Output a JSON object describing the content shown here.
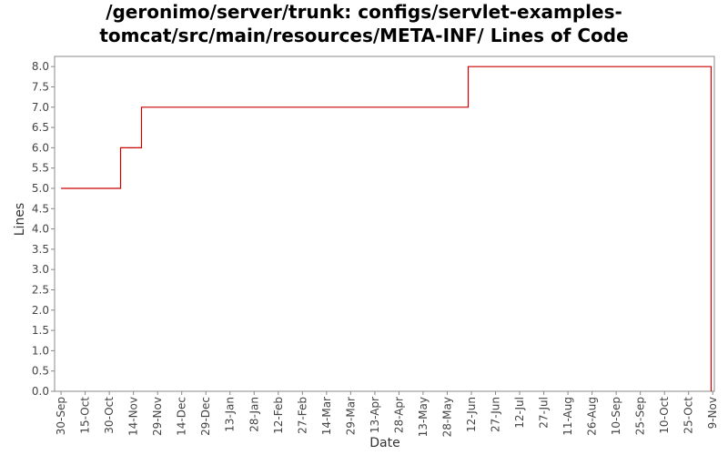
{
  "chart_data": {
    "type": "line",
    "title_lines": [
      "/geronimo/server/trunk: configs/servlet-examples-",
      "tomcat/src/main/resources/META-INF/ Lines of Code"
    ],
    "xlabel": "Date",
    "ylabel": "Lines",
    "x_tick_labels": [
      "30-Sep",
      "15-Oct",
      "30-Oct",
      "14-Nov",
      "29-Nov",
      "14-Dec",
      "29-Dec",
      "13-Jan",
      "28-Jan",
      "12-Feb",
      "27-Feb",
      "14-Mar",
      "29-Mar",
      "13-Apr",
      "28-Apr",
      "13-May",
      "28-May",
      "12-Jun",
      "27-Jun",
      "12-Jul",
      "27-Jul",
      "11-Aug",
      "26-Aug",
      "10-Sep",
      "25-Sep",
      "10-Oct",
      "25-Oct",
      "9-Nov"
    ],
    "y_ticks": [
      0.0,
      0.5,
      1.0,
      1.5,
      2.0,
      2.5,
      3.0,
      3.5,
      4.0,
      4.5,
      5.0,
      5.5,
      6.0,
      6.5,
      7.0,
      7.5,
      8.0
    ],
    "y_tick_labels": [
      "0.0",
      "0.5",
      "1.0",
      "1.5",
      "2.0",
      "2.5",
      "3.0",
      "3.5",
      "4.0",
      "4.5",
      "5.0",
      "5.5",
      "6.0",
      "6.5",
      "7.0",
      "7.5",
      "8.0"
    ],
    "ylim": [
      0,
      8.25
    ],
    "xlim": [
      "2005-09-26",
      "2006-11-10"
    ],
    "step": "post",
    "grid": false,
    "line_color": "#cc0000",
    "series": [
      {
        "x": [
          "2005-09-30",
          "2005-11-06",
          "2005-11-19",
          "2006-06-10",
          "2006-11-08",
          "2006-11-08"
        ],
        "y": [
          5,
          6,
          7,
          8,
          8,
          0
        ]
      }
    ]
  }
}
